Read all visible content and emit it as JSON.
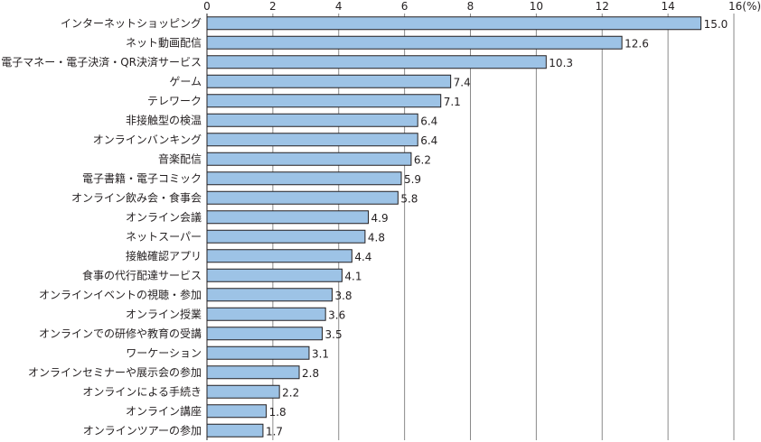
{
  "chart_data": {
    "type": "bar",
    "orientation": "horizontal",
    "unit_label": "(%)",
    "categories": [
      "インターネットショッピング",
      "ネット動画配信",
      "電子マネー・電子決済・QR決済サービス",
      "ゲーム",
      "テレワーク",
      "非接触型の検温",
      "オンラインバンキング",
      "音楽配信",
      "電子書籍・電子コミック",
      "オンライン飲み会・食事会",
      "オンライン会議",
      "ネットスーパー",
      "接触確認アプリ",
      "食事の代行配達サービス",
      "オンラインイベントの視聴・参加",
      "オンライン授業",
      "オンラインでの研修や教育の受講",
      "ワーケーション",
      "オンラインセミナーや展示会の参加",
      "オンラインによる手続き",
      "オンライン講座",
      "オンラインツアーの参加"
    ],
    "values": [
      15.0,
      12.6,
      10.3,
      7.4,
      7.1,
      6.4,
      6.4,
      6.2,
      5.9,
      5.8,
      4.9,
      4.8,
      4.4,
      4.1,
      3.8,
      3.6,
      3.5,
      3.1,
      2.8,
      2.2,
      1.8,
      1.7
    ],
    "value_labels": [
      "15.0",
      "12.6",
      "10.3",
      "7.4",
      "7.1",
      "6.4",
      "6.4",
      "6.2",
      "5.9",
      "5.8",
      "4.9",
      "4.8",
      "4.4",
      "4.1",
      "3.8",
      "3.6",
      "3.5",
      "3.1",
      "2.8",
      "2.2",
      "1.8",
      "1.7"
    ],
    "xlim": [
      0,
      16
    ],
    "xticks": [
      0,
      2,
      4,
      6,
      8,
      10,
      12,
      14,
      16
    ],
    "xtick_labels": [
      "0",
      "2",
      "4",
      "6",
      "8",
      "10",
      "12",
      "14",
      "16(%)"
    ],
    "xaxis_position": "top",
    "grid": true,
    "bar_color": "#9dc3e6",
    "bar_edge_color": "#231f20",
    "grid_color": "#8a8a8a"
  }
}
